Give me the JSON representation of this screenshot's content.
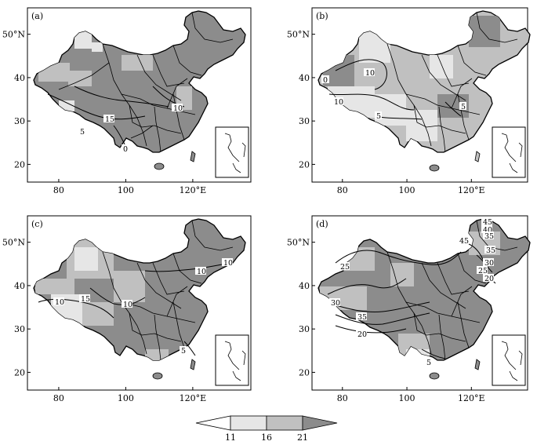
{
  "panels": [
    {
      "id": "a",
      "label": "(a)",
      "base_level": "21",
      "contour_labels": [
        "10",
        "15",
        "5",
        "0"
      ]
    },
    {
      "id": "b",
      "label": "(b)",
      "base_level": "16",
      "contour_labels": [
        "0",
        "10",
        "10",
        "5",
        "5"
      ]
    },
    {
      "id": "c",
      "label": "(c)",
      "base_level": "21",
      "contour_labels": [
        "10",
        "10",
        "10",
        "15",
        "10",
        "5"
      ]
    },
    {
      "id": "d",
      "label": "(d)",
      "base_level": "21",
      "contour_labels": [
        "45",
        "40",
        "45",
        "35",
        "35",
        "30",
        "25",
        "20",
        "25",
        "30",
        "35",
        "20",
        "5"
      ]
    }
  ],
  "axes": {
    "x_ticks": [
      "80",
      "100",
      "120°E"
    ],
    "y_ticks": [
      "50°N",
      "40",
      "30",
      "20"
    ],
    "x_values": [
      80,
      100,
      120
    ],
    "y_values": [
      50,
      40,
      30,
      20
    ]
  },
  "colorbar": {
    "levels": [
      "11",
      "16",
      "21"
    ],
    "fills": [
      "#ffffff",
      "#e6e6e6",
      "#c0c0c0",
      "#8c8c8c"
    ]
  },
  "colors": {
    "level_below_11": "#ffffff",
    "level_11_16": "#e6e6e6",
    "level_16_21": "#c0c0c0",
    "level_above_21": "#8c8c8c"
  }
}
